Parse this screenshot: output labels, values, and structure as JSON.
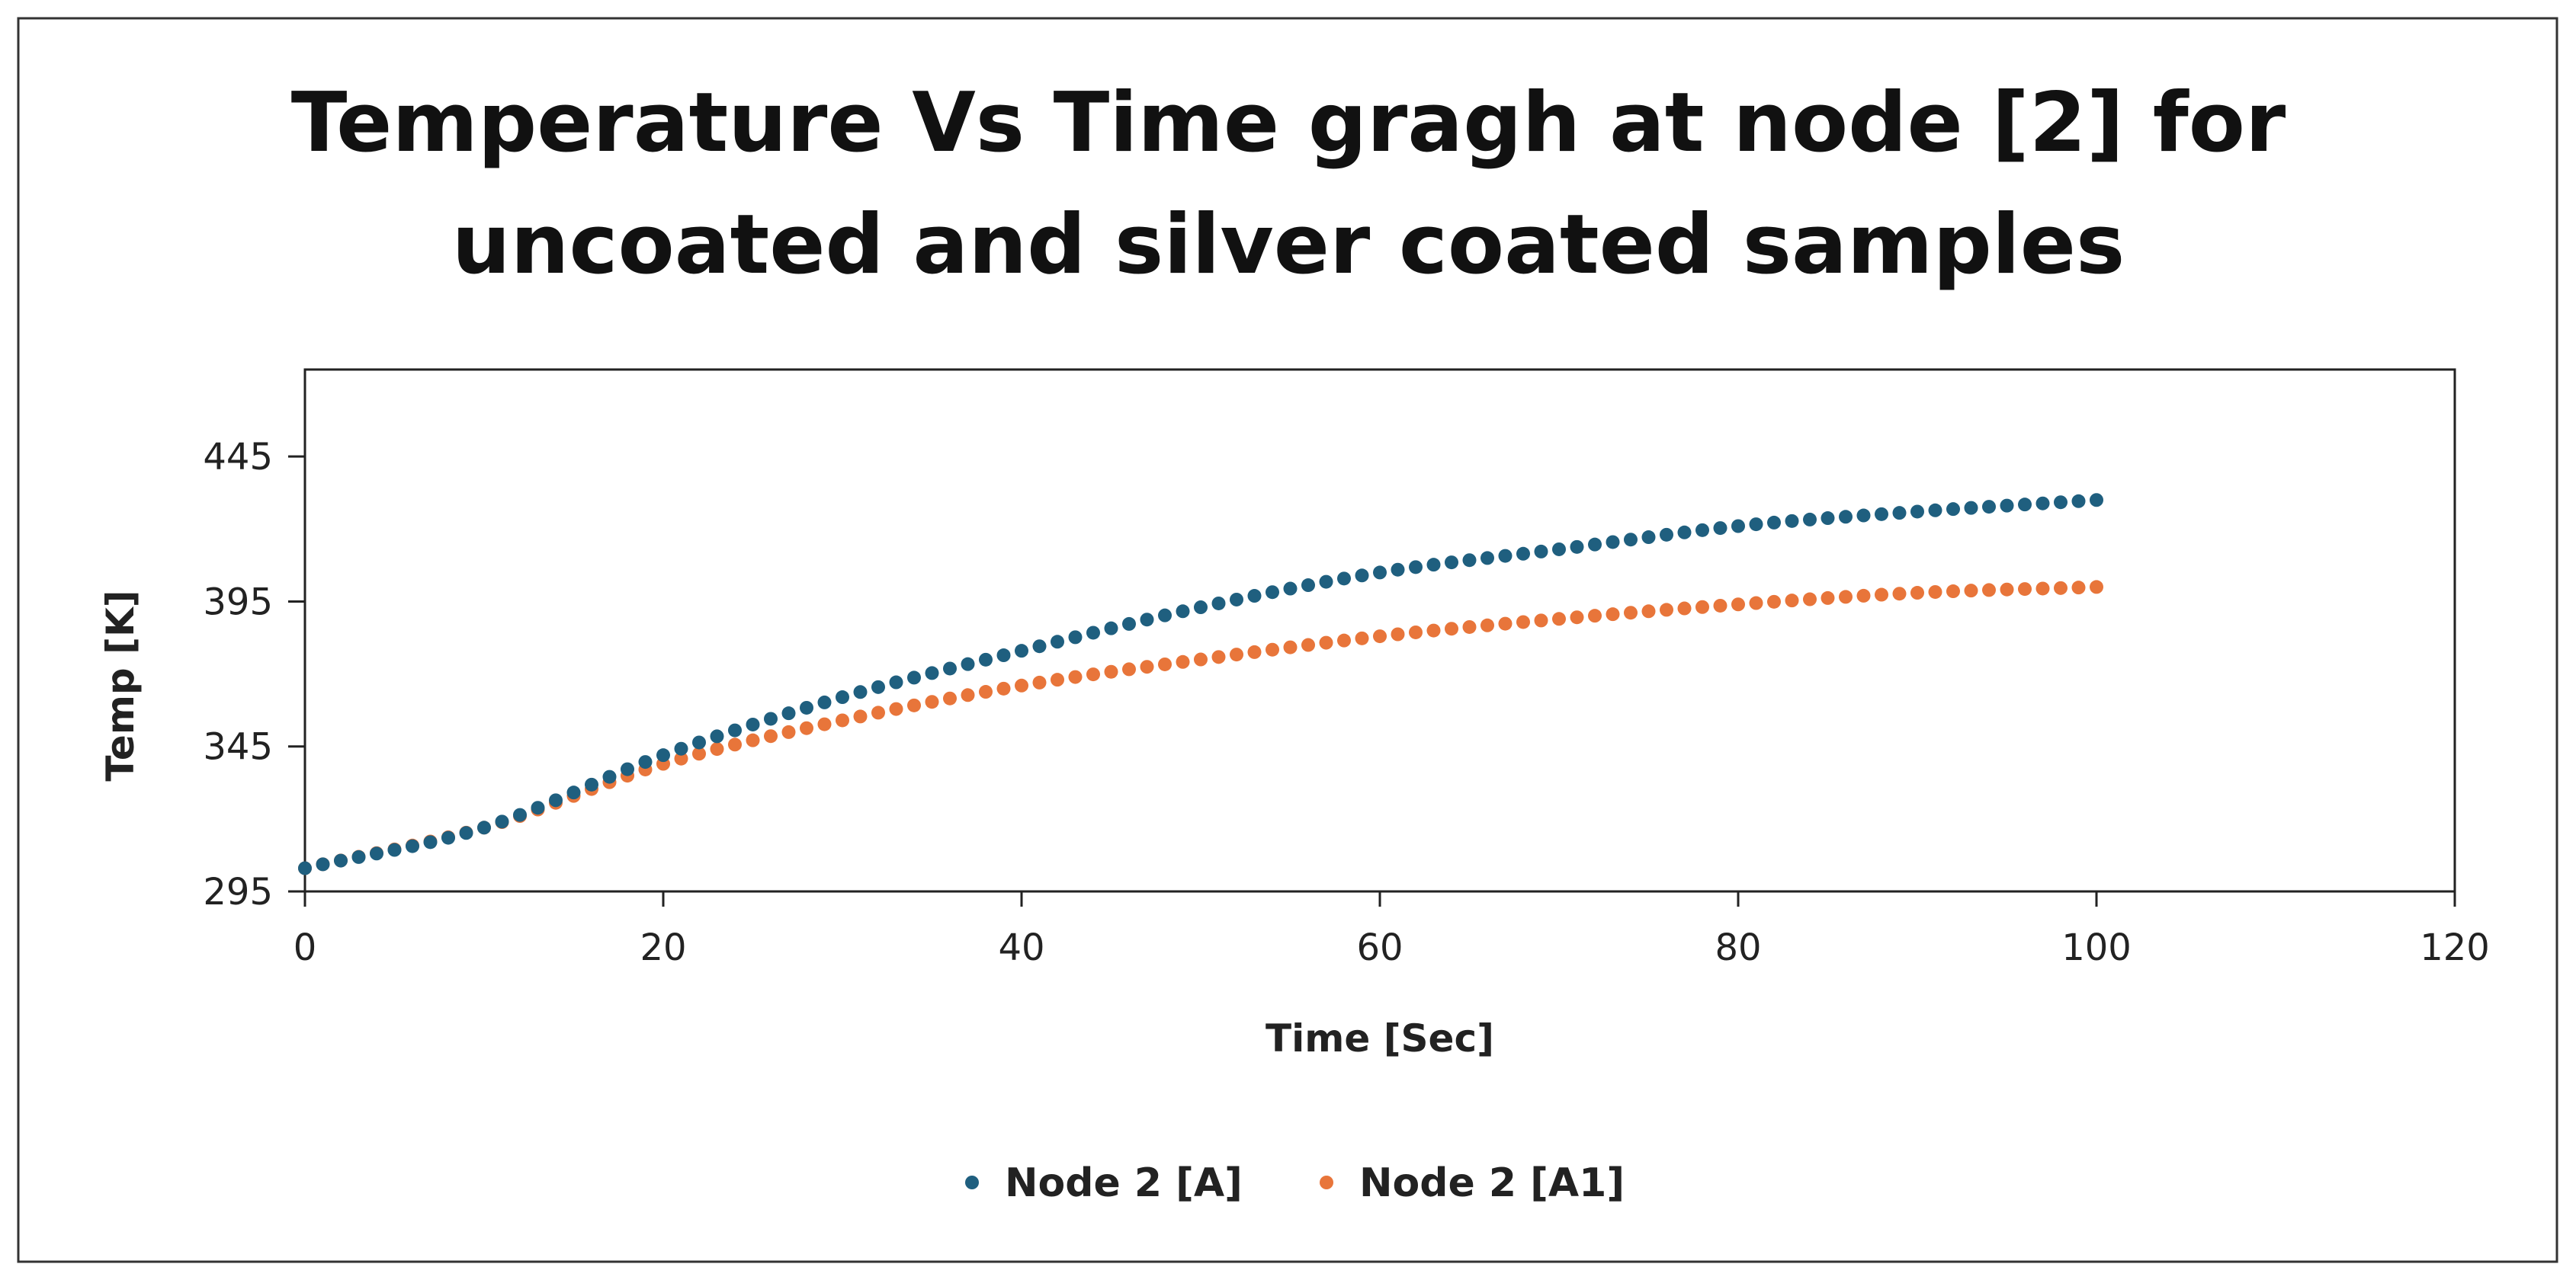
{
  "chart_data": {
    "type": "scatter",
    "title_lines": [
      "Temperature Vs Time gragh at node [2] for",
      "uncoated and silver coated samples"
    ],
    "xlabel": "Time [Sec]",
    "ylabel": "Temp [K]",
    "xlim": [
      0,
      120
    ],
    "ylim": [
      295,
      475
    ],
    "x_ticks": [
      0,
      20,
      40,
      60,
      80,
      100,
      120
    ],
    "y_ticks": [
      295,
      345,
      395,
      445
    ],
    "legend_position": "bottom-center",
    "series": [
      {
        "name": "Node 2 [A]",
        "color": "#1f5f7f",
        "x_start": 0,
        "x_end": 100,
        "x_step": 1,
        "anchor_x": [
          0,
          10,
          20,
          30,
          40,
          50,
          60,
          70,
          80,
          90,
          100
        ],
        "anchor_y": [
          303,
          317,
          342,
          362,
          378,
          393,
          405,
          413,
          421,
          426,
          430
        ]
      },
      {
        "name": "Node 2 [A1]",
        "color": "#e8753a",
        "x_start": 0,
        "x_end": 100,
        "x_step": 1,
        "anchor_x": [
          0,
          10,
          20,
          30,
          40,
          50,
          60,
          70,
          80,
          90,
          100
        ],
        "anchor_y": [
          303,
          317,
          339,
          354,
          366,
          375,
          383,
          389,
          394,
          398,
          400
        ]
      }
    ]
  }
}
